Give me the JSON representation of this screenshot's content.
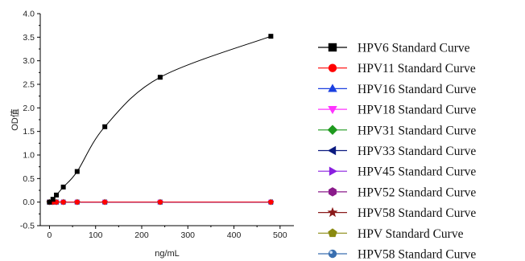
{
  "chart_data": {
    "type": "line",
    "xlabel": "ng/mL",
    "ylabel": "OD值",
    "xlim": [
      -20,
      530
    ],
    "ylim": [
      -0.5,
      4.0
    ],
    "xticks": [
      0,
      100,
      200,
      300,
      400,
      500
    ],
    "yticks": [
      -0.5,
      0.0,
      0.5,
      1.0,
      1.5,
      2.0,
      2.5,
      3.0,
      3.5,
      4.0
    ],
    "xtick_labels": [
      "0",
      "100",
      "200",
      "300",
      "400",
      "500"
    ],
    "ytick_labels": [
      "-0.5",
      "0.0",
      "0.5",
      "1.0",
      "1.5",
      "2.0",
      "2.5",
      "3.0",
      "3.5",
      "4.0"
    ],
    "grid": false,
    "legend_position": "right",
    "x": [
      0,
      7.5,
      15,
      30,
      60,
      120,
      240,
      480
    ],
    "series": [
      {
        "name": "HPV6 Standard Curve",
        "color": "#000000",
        "marker": "square",
        "values": [
          0.0,
          0.06,
          0.15,
          0.32,
          0.65,
          1.6,
          2.65,
          3.52
        ]
      },
      {
        "name": "HPV11 Standard Curve",
        "color": "#ff0000",
        "marker": "circle",
        "values": [
          0,
          0,
          0,
          0,
          0,
          0,
          0,
          0
        ]
      },
      {
        "name": "HPV16 Standard Curve",
        "color": "#1a3fe0",
        "marker": "triangle-up",
        "values": [
          0,
          0,
          0,
          0,
          0,
          0,
          0,
          0
        ]
      },
      {
        "name": "HPV18 Standard Curve",
        "color": "#ff33ff",
        "marker": "triangle-down",
        "values": [
          0,
          0,
          0,
          0,
          0,
          0,
          0,
          0
        ]
      },
      {
        "name": "HPV31 Standard Curve",
        "color": "#1e9a1e",
        "marker": "diamond",
        "values": [
          0,
          0,
          0,
          0,
          0,
          0,
          0,
          0
        ]
      },
      {
        "name": "HPV33 Standard Curve",
        "color": "#0b1a80",
        "marker": "triangle-left",
        "values": [
          0,
          0,
          0,
          0,
          0,
          0,
          0,
          0
        ]
      },
      {
        "name": "HPV45 Standard Curve",
        "color": "#8a1fe0",
        "marker": "triangle-right",
        "values": [
          0,
          0,
          0,
          0,
          0,
          0,
          0,
          0
        ]
      },
      {
        "name": "HPV52 Standard Curve",
        "color": "#8a1a8a",
        "marker": "hexagon",
        "values": [
          0,
          0,
          0,
          0,
          0,
          0,
          0,
          0
        ]
      },
      {
        "name": "HPV58 Standard Curve",
        "color": "#8a1a1a",
        "marker": "star",
        "values": [
          0,
          0,
          0,
          0,
          0,
          0,
          0,
          0
        ]
      },
      {
        "name": "HPV Standard Curve",
        "color": "#8a8a10",
        "marker": "pentagon",
        "values": [
          0,
          0,
          0,
          0,
          0,
          0,
          0,
          0
        ]
      },
      {
        "name": "HPV58 Standard Curve",
        "color": "#3a6fb0",
        "marker": "sphere",
        "values": [
          0,
          0,
          0,
          0,
          0,
          0,
          0,
          0
        ]
      }
    ]
  }
}
